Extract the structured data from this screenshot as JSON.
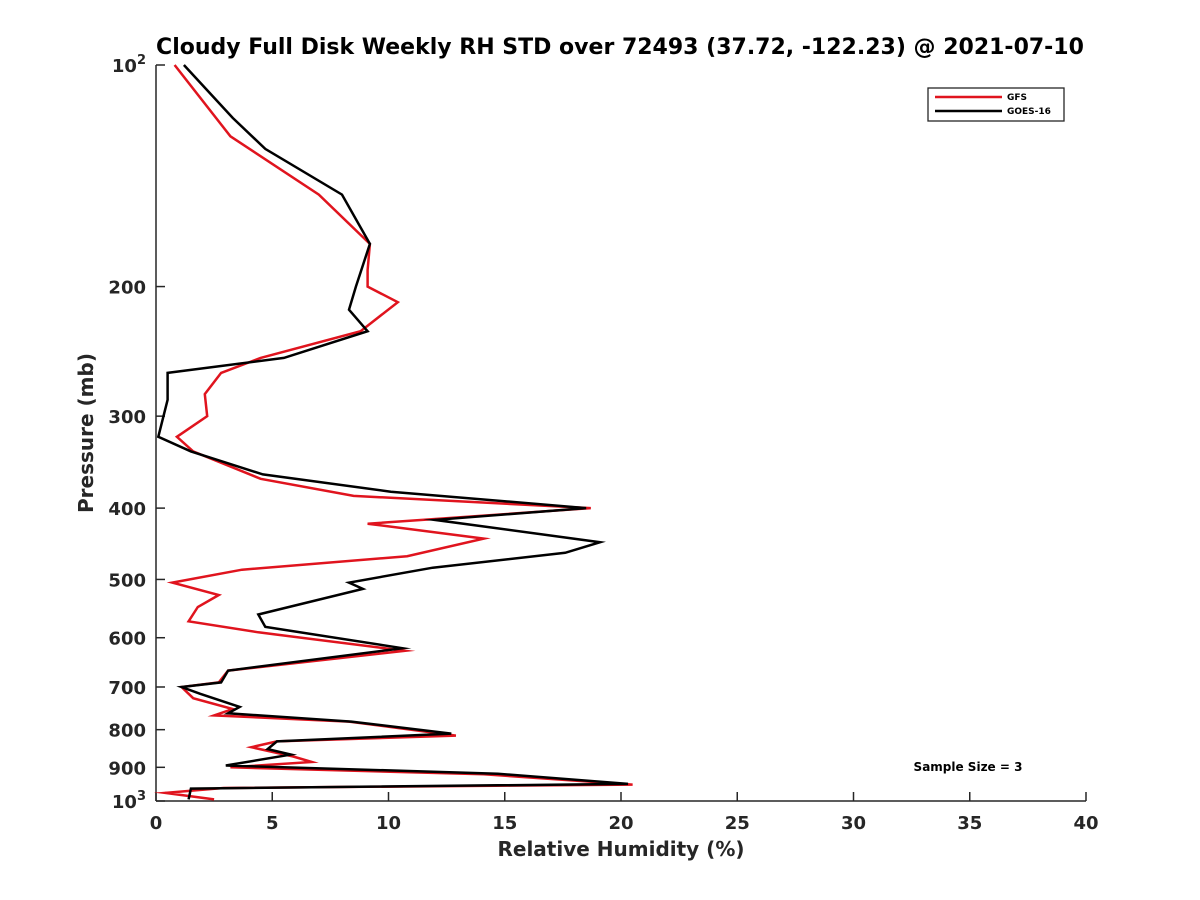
{
  "chart_data": {
    "type": "line",
    "title": "Cloudy Full Disk Weekly RH STD over 72493 (37.72, -122.23) @ 2021-07-10",
    "xlabel": "Relative Humidity (%)",
    "ylabel": "Pressure (mb)",
    "xlim": [
      0,
      40
    ],
    "ylim": [
      100,
      1000
    ],
    "yscale": "log",
    "y_reversed": true,
    "grid": false,
    "legend_position": "top-right",
    "x_ticks": [
      0,
      5,
      10,
      15,
      20,
      25,
      30,
      35,
      40
    ],
    "y_ticks": [
      {
        "value": 100,
        "base": "10",
        "exp": "2"
      },
      {
        "value": 200,
        "label": "200"
      },
      {
        "value": 300,
        "label": "300"
      },
      {
        "value": 400,
        "label": "400"
      },
      {
        "value": 500,
        "label": "500"
      },
      {
        "value": 600,
        "label": "600"
      },
      {
        "value": 700,
        "label": "700"
      },
      {
        "value": 800,
        "label": "800"
      },
      {
        "value": 900,
        "label": "900"
      },
      {
        "value": 1000,
        "base": "10",
        "exp": "3"
      }
    ],
    "annotation": "Sample Size = 3",
    "series": [
      {
        "name": "GFS",
        "color": "#e0141e",
        "points": [
          [
            0.8,
            100
          ],
          [
            3.2,
            125
          ],
          [
            7,
            150
          ],
          [
            9.2,
            175
          ],
          [
            9.1,
            190
          ],
          [
            9.1,
            200
          ],
          [
            10.4,
            210
          ],
          [
            8.8,
            230
          ],
          [
            4.5,
            250
          ],
          [
            2.8,
            262
          ],
          [
            2.1,
            280
          ],
          [
            2.2,
            300
          ],
          [
            0.9,
            320
          ],
          [
            1.6,
            335
          ],
          [
            4.5,
            365
          ],
          [
            8.5,
            385
          ],
          [
            18.7,
            400
          ],
          [
            9.1,
            420
          ],
          [
            14.1,
            440
          ],
          [
            10.8,
            465
          ],
          [
            3.7,
            485
          ],
          [
            0.7,
            505
          ],
          [
            2.7,
            525
          ],
          [
            1.8,
            545
          ],
          [
            1.4,
            570
          ],
          [
            4.4,
            590
          ],
          [
            10.7,
            625
          ],
          [
            3.1,
            665
          ],
          [
            2.7,
            690
          ],
          [
            1.1,
            700
          ],
          [
            1.6,
            725
          ],
          [
            3.3,
            750
          ],
          [
            2.5,
            765
          ],
          [
            8.3,
            780
          ],
          [
            12.9,
            815
          ],
          [
            5.2,
            830
          ],
          [
            4.1,
            845
          ],
          [
            5.9,
            870
          ],
          [
            6.7,
            885
          ],
          [
            3.2,
            900
          ],
          [
            14.1,
            920
          ],
          [
            20.5,
            950
          ],
          [
            2.9,
            960
          ],
          [
            0.4,
            975
          ],
          [
            2.5,
            995
          ]
        ]
      },
      {
        "name": "GOES-16",
        "color": "#000000",
        "points": [
          [
            1.2,
            100
          ],
          [
            3.3,
            118
          ],
          [
            4.7,
            130
          ],
          [
            8,
            150
          ],
          [
            9.2,
            175
          ],
          [
            8.6,
            200
          ],
          [
            8.3,
            215
          ],
          [
            9.1,
            230
          ],
          [
            5.5,
            250
          ],
          [
            0.5,
            262
          ],
          [
            0.5,
            285
          ],
          [
            0.1,
            320
          ],
          [
            1.5,
            335
          ],
          [
            4.6,
            360
          ],
          [
            10.1,
            380
          ],
          [
            18.5,
            400
          ],
          [
            12,
            415
          ],
          [
            19.1,
            445
          ],
          [
            17.6,
            460
          ],
          [
            11.9,
            482
          ],
          [
            8.3,
            505
          ],
          [
            8.9,
            515
          ],
          [
            4.4,
            558
          ],
          [
            4.7,
            580
          ],
          [
            10.6,
            620
          ],
          [
            3.1,
            665
          ],
          [
            2.8,
            690
          ],
          [
            1.1,
            700
          ],
          [
            1.9,
            715
          ],
          [
            3.6,
            745
          ],
          [
            3.1,
            760
          ],
          [
            8.4,
            780
          ],
          [
            12.7,
            810
          ],
          [
            5.2,
            830
          ],
          [
            4.8,
            850
          ],
          [
            5.8,
            865
          ],
          [
            3,
            895
          ],
          [
            14.7,
            918
          ],
          [
            20.3,
            948
          ],
          [
            1.5,
            962
          ],
          [
            1.4,
            995
          ]
        ]
      }
    ]
  }
}
